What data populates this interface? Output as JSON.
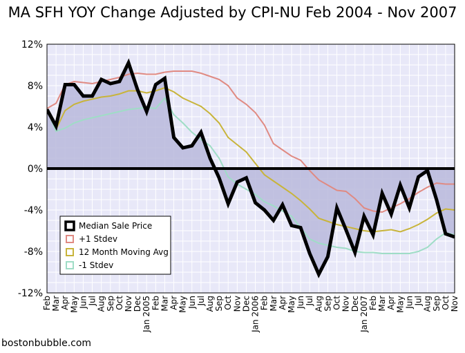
{
  "title": "MA SFH YOY Change Adjusted by CPI-NU Feb 2004 - Nov 2007",
  "footer": "bostonbubble.com",
  "chart_data": {
    "type": "line",
    "title": "MA SFH YOY Change Adjusted by CPI-NU Feb 2004 - Nov 2007",
    "xlabel": "",
    "ylabel": "",
    "ylim": [
      -12,
      12
    ],
    "yticks": [
      12,
      8,
      4,
      0,
      -4,
      -8,
      -12
    ],
    "ytick_labels": [
      "12%",
      "8%",
      "4%",
      "0%",
      "-4%",
      "-8%",
      "-12%"
    ],
    "grid": true,
    "legend_position": "bottom-left",
    "x": [
      "Feb",
      "Mar",
      "Apr",
      "May",
      "Jun",
      "Jul",
      "Aug",
      "Sep",
      "Oct",
      "Nov",
      "Dec",
      "Jan 2005",
      "Feb",
      "Mar",
      "Apr",
      "May",
      "Jun",
      "Jul",
      "Aug",
      "Sep",
      "Oct",
      "Nov",
      "Dec",
      "Jan 2006",
      "Feb",
      "Mar",
      "Apr",
      "May",
      "Jun",
      "Jul",
      "Aug",
      "Sep",
      "Oct",
      "Nov",
      "Dec",
      "Jan 2007",
      "Feb",
      "Mar",
      "Apr",
      "May",
      "Jun",
      "Jul",
      "Aug",
      "Sep",
      "Oct",
      "Nov"
    ],
    "series": [
      {
        "name": "Median Sale Price",
        "color": "#000000",
        "values": [
          5.7,
          4.1,
          8.1,
          8.1,
          7.0,
          7.0,
          8.6,
          8.2,
          8.4,
          10.2,
          7.6,
          5.5,
          8.1,
          8.7,
          3.0,
          2.0,
          2.2,
          3.5,
          1.0,
          -0.9,
          -3.4,
          -1.3,
          -0.9,
          -3.3,
          -4.0,
          -5.0,
          -3.5,
          -5.5,
          -5.7,
          -8.2,
          -10.2,
          -8.5,
          -3.8,
          -5.9,
          -8.1,
          -4.6,
          -6.4,
          -2.4,
          -4.4,
          -1.6,
          -3.8,
          -0.8,
          -0.2,
          -3.0,
          -6.3,
          -6.6
        ]
      },
      {
        "name": "+1 Stdev",
        "color": "#e08a82",
        "values": [
          5.8,
          6.3,
          8.1,
          8.4,
          8.3,
          8.2,
          8.4,
          8.6,
          8.8,
          9.1,
          9.2,
          9.1,
          9.1,
          9.3,
          9.4,
          9.4,
          9.4,
          9.2,
          8.9,
          8.6,
          8.0,
          6.8,
          6.2,
          5.4,
          4.2,
          2.4,
          1.8,
          1.2,
          0.8,
          -0.2,
          -1.1,
          -1.6,
          -2.1,
          -2.2,
          -2.9,
          -3.8,
          -4.1,
          -4.2,
          -3.8,
          -3.4,
          -2.9,
          -2.3,
          -1.8,
          -1.4,
          -1.5,
          -1.5
        ]
      },
      {
        "name": "12 Month Moving Avg",
        "color": "#c8b43a",
        "values": [
          5.7,
          3.8,
          5.6,
          6.2,
          6.5,
          6.7,
          6.9,
          7.0,
          7.2,
          7.5,
          7.5,
          7.3,
          7.5,
          7.8,
          7.4,
          6.8,
          6.4,
          6.0,
          5.3,
          4.4,
          3.0,
          2.3,
          1.6,
          0.5,
          -0.6,
          -1.2,
          -1.8,
          -2.4,
          -3.1,
          -3.9,
          -4.8,
          -5.1,
          -5.4,
          -5.6,
          -5.8,
          -6.0,
          -6.1,
          -6.0,
          -5.9,
          -6.1,
          -5.8,
          -5.4,
          -4.9,
          -4.3,
          -3.9,
          -4.0
        ]
      },
      {
        "name": "-1 Stdev",
        "color": "#9fddc6",
        "values": [
          5.7,
          3.6,
          3.9,
          4.4,
          4.7,
          4.9,
          5.1,
          5.3,
          5.5,
          5.7,
          5.8,
          5.9,
          5.8,
          6.8,
          5.2,
          4.4,
          3.5,
          2.8,
          2.2,
          1.0,
          -0.8,
          -1.5,
          -2.0,
          -2.5,
          -3.2,
          -3.6,
          -4.1,
          -4.6,
          -5.7,
          -6.8,
          -7.2,
          -7.4,
          -7.6,
          -7.7,
          -8.0,
          -8.1,
          -8.1,
          -8.2,
          -8.2,
          -8.2,
          -8.2,
          -8.0,
          -7.6,
          -6.8,
          -6.2,
          -6.4
        ]
      }
    ]
  }
}
